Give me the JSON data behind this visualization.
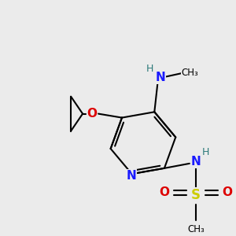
{
  "background_color": "#ebebeb",
  "atom_colors": {
    "C": "#000000",
    "N": "#1a1aff",
    "O": "#dd0000",
    "S": "#cccc00",
    "H": "#2d7a7a"
  },
  "bond_lw": 1.5,
  "label_fs": 10,
  "figsize": [
    3.0,
    3.0
  ],
  "dpi": 100
}
